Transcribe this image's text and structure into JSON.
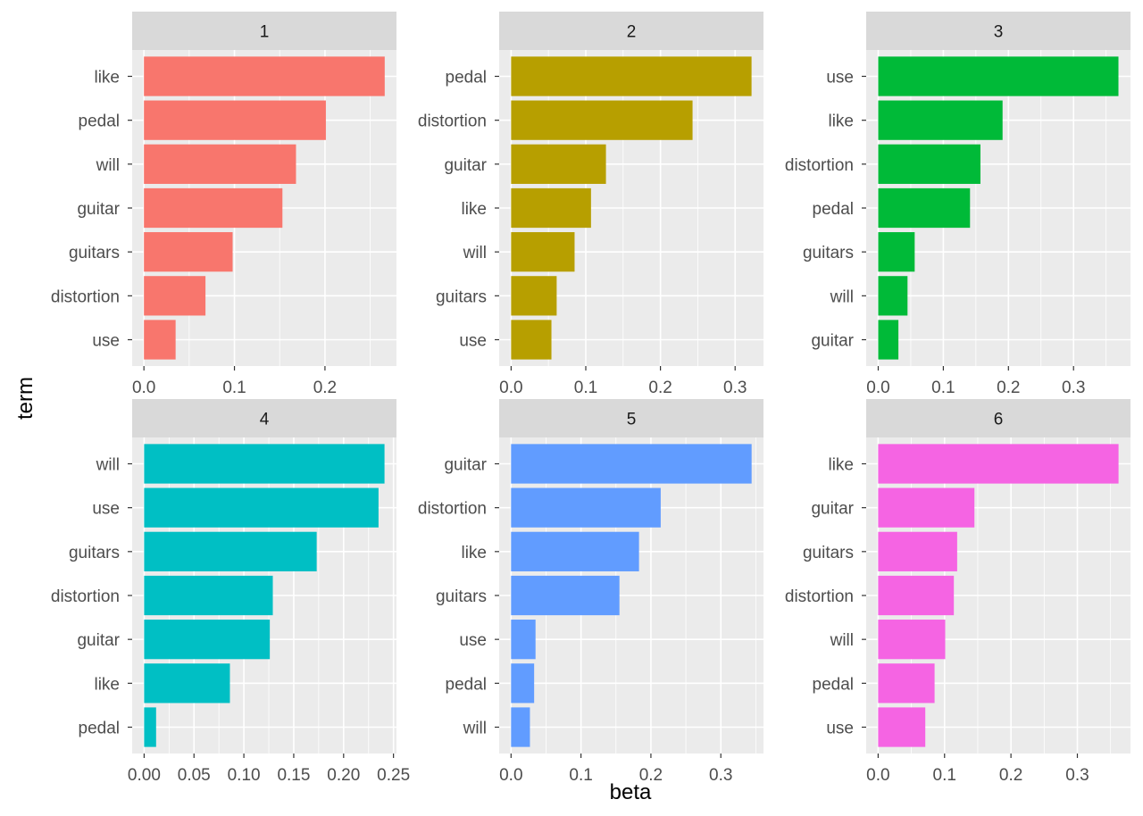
{
  "chart_data": {
    "type": "bar",
    "orientation": "horizontal",
    "layout": "facet_wrap 2x3",
    "xlabel": "beta",
    "ylabel": "term",
    "grid": true,
    "legend": "none",
    "facets": [
      {
        "title": "1",
        "color": "#F8766D",
        "categories": [
          "like",
          "pedal",
          "will",
          "guitar",
          "guitars",
          "distortion",
          "use"
        ],
        "values": [
          0.266,
          0.201,
          0.168,
          0.153,
          0.098,
          0.068,
          0.035
        ],
        "xlim": [
          -0.013,
          0.279
        ],
        "xticks": [
          0.0,
          0.1,
          0.2
        ],
        "xtick_labels": [
          "0.0",
          "0.1",
          "0.2"
        ]
      },
      {
        "title": "2",
        "color": "#B79F00",
        "categories": [
          "pedal",
          "distortion",
          "guitar",
          "like",
          "will",
          "guitars",
          "use"
        ],
        "values": [
          0.322,
          0.243,
          0.127,
          0.107,
          0.085,
          0.061,
          0.054
        ],
        "xlim": [
          -0.016,
          0.338
        ],
        "xticks": [
          0.0,
          0.1,
          0.2,
          0.3
        ],
        "xtick_labels": [
          "0.0",
          "0.1",
          "0.2",
          "0.3"
        ]
      },
      {
        "title": "3",
        "color": "#00BA38",
        "categories": [
          "use",
          "like",
          "distortion",
          "pedal",
          "guitars",
          "will",
          "guitar"
        ],
        "values": [
          0.369,
          0.191,
          0.157,
          0.141,
          0.056,
          0.045,
          0.031
        ],
        "xlim": [
          -0.0185,
          0.3875
        ],
        "xticks": [
          0.0,
          0.1,
          0.2,
          0.3
        ],
        "xtick_labels": [
          "0.0",
          "0.1",
          "0.2",
          "0.3"
        ]
      },
      {
        "title": "4",
        "color": "#00BFC4",
        "categories": [
          "will",
          "use",
          "guitars",
          "distortion",
          "guitar",
          "like",
          "pedal"
        ],
        "values": [
          0.241,
          0.235,
          0.173,
          0.129,
          0.126,
          0.086,
          0.012
        ],
        "xlim": [
          -0.012,
          0.253
        ],
        "xticks": [
          0.0,
          0.05,
          0.1,
          0.15,
          0.2,
          0.25
        ],
        "xtick_labels": [
          "0.00",
          "0.05",
          "0.10",
          "0.15",
          "0.20",
          "0.25"
        ]
      },
      {
        "title": "5",
        "color": "#619CFF",
        "categories": [
          "guitar",
          "distortion",
          "like",
          "guitars",
          "use",
          "pedal",
          "will"
        ],
        "values": [
          0.344,
          0.214,
          0.183,
          0.155,
          0.035,
          0.033,
          0.027
        ],
        "xlim": [
          -0.017,
          0.361
        ],
        "xticks": [
          0.0,
          0.1,
          0.2,
          0.3
        ],
        "xtick_labels": [
          "0.0",
          "0.1",
          "0.2",
          "0.3"
        ]
      },
      {
        "title": "6",
        "color": "#F564E3",
        "categories": [
          "like",
          "guitar",
          "guitars",
          "distortion",
          "will",
          "pedal",
          "use"
        ],
        "values": [
          0.362,
          0.145,
          0.119,
          0.114,
          0.101,
          0.085,
          0.071
        ],
        "xlim": [
          -0.018,
          0.38
        ],
        "xticks": [
          0.0,
          0.1,
          0.2,
          0.3
        ],
        "xtick_labels": [
          "0.0",
          "0.1",
          "0.2",
          "0.3"
        ]
      }
    ]
  }
}
